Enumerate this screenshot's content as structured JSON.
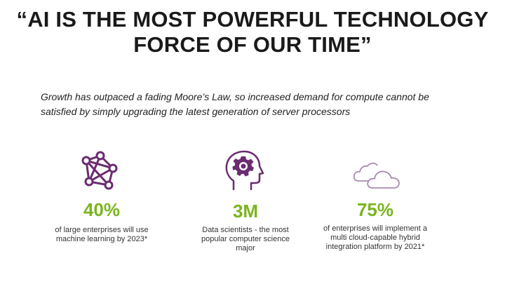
{
  "slide": {
    "title_line1": "“AI IS THE MOST POWERFUL TECHNOLOGY",
    "title_line2": "FORCE OF OUR TIME”",
    "subtitle_line1": "Growth has outpaced a fading Moore’s Law, so increased demand for compute cannot be",
    "subtitle_line2": "satisfied by simply upgrading the latest generation of server processors"
  },
  "stats": [
    {
      "icon": "network-icon",
      "value": "40%",
      "desc_lines": [
        "of large enterprises will use",
        "machine learning by 2023*"
      ]
    },
    {
      "icon": "head-gear-icon",
      "value": "3M",
      "desc_lines": [
        "Data scientists - the most",
        "popular computer science",
        "major"
      ]
    },
    {
      "icon": "cloud-icon",
      "value": "75%",
      "desc_lines": [
        "of enterprises will implement a",
        "multi cloud-capable hybrid",
        "integration platform by 2021*"
      ]
    }
  ],
  "colors": {
    "accent_green": "#7ab51d",
    "icon_purple": "#6b2c70",
    "cloud_purple": "#a98bb0"
  }
}
